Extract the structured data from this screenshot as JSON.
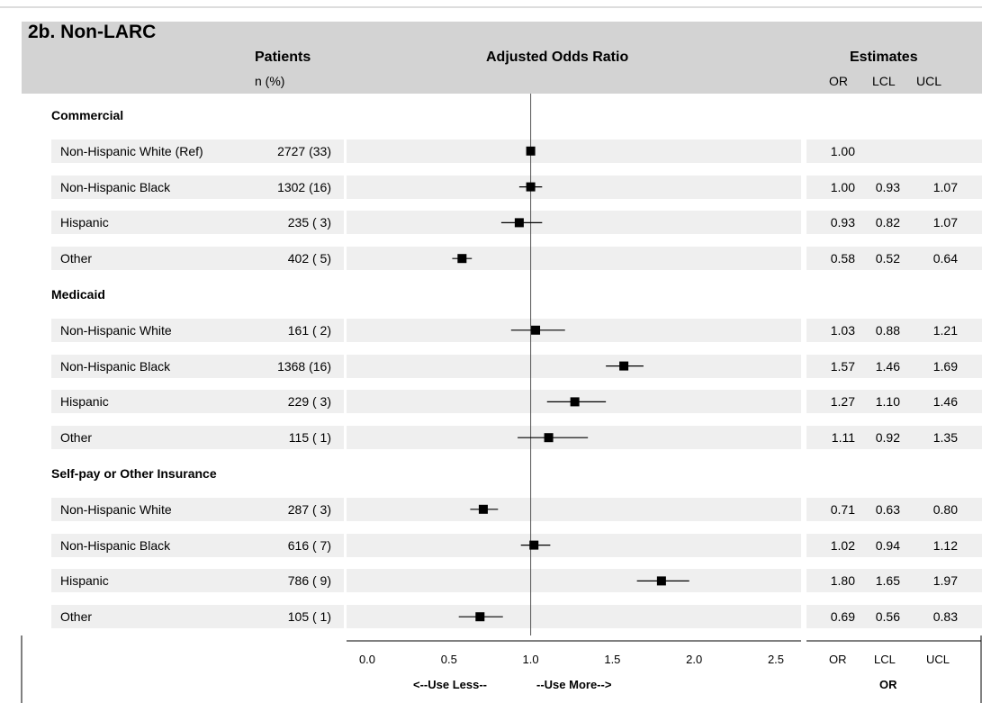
{
  "title": "2b. Non-LARC",
  "headers": {
    "patients": "Patients",
    "patients_sub": "n (%)",
    "plot": "Adjusted Odds Ratio",
    "estimates": "Estimates",
    "or": "OR",
    "lcl": "LCL",
    "ucl": "UCL"
  },
  "footer": {
    "less": "<--Use Less--",
    "more": "--Use More-->",
    "or": "OR",
    "lcl": "LCL",
    "ucl": "UCL"
  },
  "chart_data": {
    "type": "forest",
    "xlim": [
      0.0,
      2.5
    ],
    "xticks": [
      "0.0",
      "0.5",
      "1.0",
      "1.5",
      "2.0",
      "2.5"
    ],
    "reference_line": 1.0,
    "groups": [
      {
        "label": "Commercial",
        "rows": [
          {
            "label": "Non-Hispanic White (Ref)",
            "n": "2727 (33)",
            "or": 1.0,
            "lcl": null,
            "ucl": null,
            "or_text": "1.00",
            "lcl_text": "",
            "ucl_text": ""
          },
          {
            "label": "Non-Hispanic Black",
            "n": "1302 (16)",
            "or": 1.0,
            "lcl": 0.93,
            "ucl": 1.07,
            "or_text": "1.00",
            "lcl_text": "0.93",
            "ucl_text": "1.07"
          },
          {
            "label": "Hispanic",
            "n": "235 ( 3)",
            "or": 0.93,
            "lcl": 0.82,
            "ucl": 1.07,
            "or_text": "0.93",
            "lcl_text": "0.82",
            "ucl_text": "1.07"
          },
          {
            "label": "Other",
            "n": "402 ( 5)",
            "or": 0.58,
            "lcl": 0.52,
            "ucl": 0.64,
            "or_text": "0.58",
            "lcl_text": "0.52",
            "ucl_text": "0.64"
          }
        ]
      },
      {
        "label": "Medicaid",
        "rows": [
          {
            "label": "Non-Hispanic White",
            "n": "161 ( 2)",
            "or": 1.03,
            "lcl": 0.88,
            "ucl": 1.21,
            "or_text": "1.03",
            "lcl_text": "0.88",
            "ucl_text": "1.21"
          },
          {
            "label": "Non-Hispanic Black",
            "n": "1368 (16)",
            "or": 1.57,
            "lcl": 1.46,
            "ucl": 1.69,
            "or_text": "1.57",
            "lcl_text": "1.46",
            "ucl_text": "1.69"
          },
          {
            "label": "Hispanic",
            "n": "229 ( 3)",
            "or": 1.27,
            "lcl": 1.1,
            "ucl": 1.46,
            "or_text": "1.27",
            "lcl_text": "1.10",
            "ucl_text": "1.46"
          },
          {
            "label": "Other",
            "n": "115 ( 1)",
            "or": 1.11,
            "lcl": 0.92,
            "ucl": 1.35,
            "or_text": "1.11",
            "lcl_text": "0.92",
            "ucl_text": "1.35"
          }
        ]
      },
      {
        "label": "Self-pay or Other Insurance",
        "rows": [
          {
            "label": "Non-Hispanic White",
            "n": "287 ( 3)",
            "or": 0.71,
            "lcl": 0.63,
            "ucl": 0.8,
            "or_text": "0.71",
            "lcl_text": "0.63",
            "ucl_text": "0.80"
          },
          {
            "label": "Non-Hispanic Black",
            "n": "616 ( 7)",
            "or": 1.02,
            "lcl": 0.94,
            "ucl": 1.12,
            "or_text": "1.02",
            "lcl_text": "0.94",
            "ucl_text": "1.12"
          },
          {
            "label": "Hispanic",
            "n": "786 ( 9)",
            "or": 1.8,
            "lcl": 1.65,
            "ucl": 1.97,
            "or_text": "1.80",
            "lcl_text": "1.65",
            "ucl_text": "1.97"
          },
          {
            "label": "Other",
            "n": "105 ( 1)",
            "or": 0.69,
            "lcl": 0.56,
            "ucl": 0.83,
            "or_text": "0.69",
            "lcl_text": "0.56",
            "ucl_text": "0.83"
          }
        ]
      }
    ]
  }
}
